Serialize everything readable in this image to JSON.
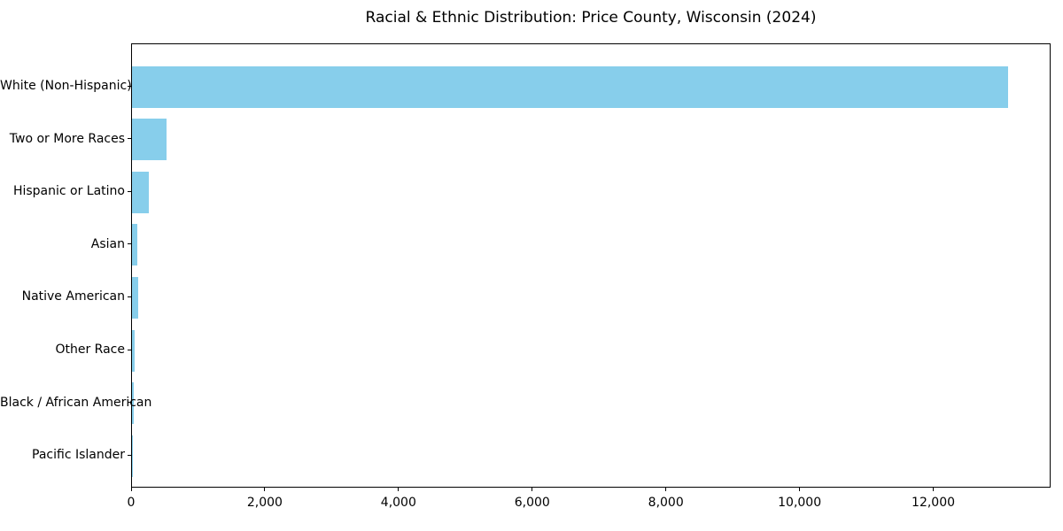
{
  "chart_data": {
    "type": "bar",
    "orientation": "horizontal",
    "title": "Racial & Ethnic Distribution: Price County, Wisconsin (2024)",
    "categories": [
      "White (Non-Hispanic)",
      "Two or More Races",
      "Hispanic or Latino",
      "Asian",
      "Native American",
      "Other Race",
      "Black / African American",
      "Pacific Islander"
    ],
    "values": [
      13100,
      520,
      250,
      75,
      95,
      40,
      20,
      5
    ],
    "xlabel": "",
    "ylabel": "",
    "xlim": [
      0,
      13755
    ],
    "xticks": [
      0,
      2000,
      4000,
      6000,
      8000,
      10000,
      12000
    ],
    "xtick_labels": [
      "0",
      "2,000",
      "4,000",
      "6,000",
      "8,000",
      "10,000",
      "12,000"
    ],
    "bar_color": "#87CEEB",
    "axis_color": "#000000",
    "background_color": "#FFFFFF",
    "grid": false,
    "legend_position": "none"
  }
}
